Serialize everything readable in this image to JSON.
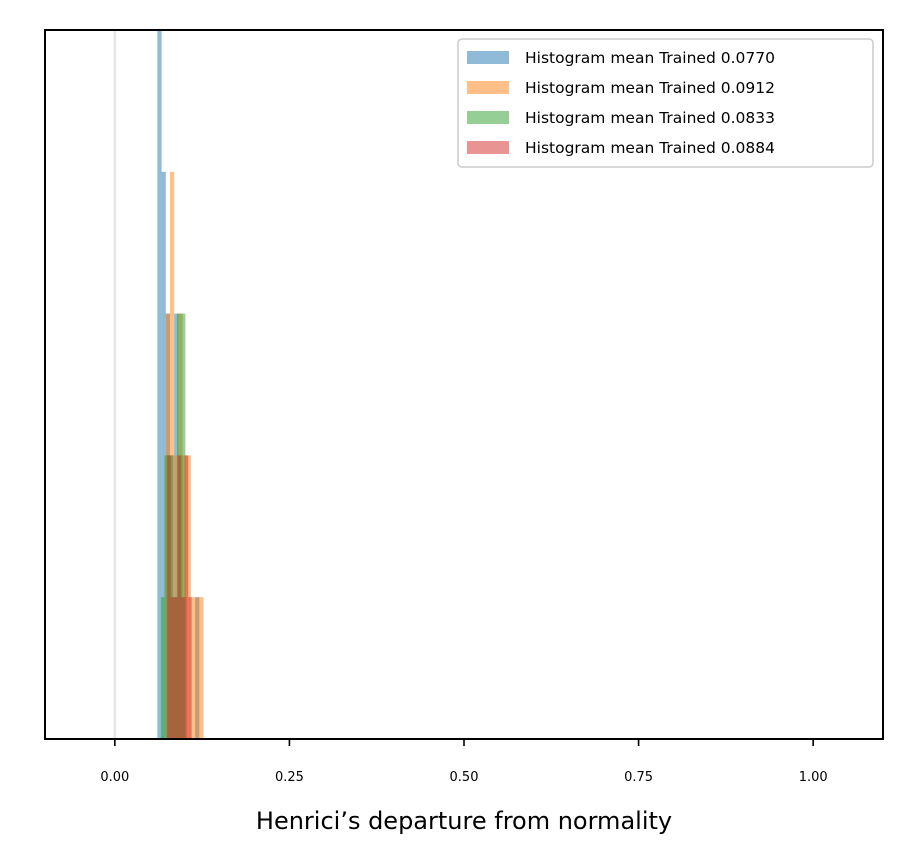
{
  "chart_data": {
    "type": "histogram",
    "title": "",
    "xlabel": "Henrici’s departure from normality",
    "ylabel": "",
    "xlim": [
      -0.1,
      1.1
    ],
    "ylim": [
      0,
      5
    ],
    "y_ticks_visible": false,
    "x_ticks": [
      {
        "value": 0.0,
        "label": "0.00"
      },
      {
        "value": 0.25,
        "label": "0.25"
      },
      {
        "value": 0.5,
        "label": "0.50"
      },
      {
        "value": 0.75,
        "label": "0.75"
      },
      {
        "value": 1.0,
        "label": "1.00"
      }
    ],
    "reference_line": {
      "x": 0.0,
      "color": "#e6e6e6"
    },
    "grid": false,
    "legend": {
      "placement": "top-right"
    },
    "series": [
      {
        "name": "Histogram mean Trained 0.0770",
        "color": "#1f77b4",
        "opacity": 0.5,
        "bins": [
          {
            "x0": 0.061,
            "x1": 0.067,
            "count": 5
          },
          {
            "x0": 0.067,
            "x1": 0.073,
            "count": 4
          },
          {
            "x0": 0.073,
            "x1": 0.079,
            "count": 3
          },
          {
            "x0": 0.079,
            "x1": 0.085,
            "count": 2
          },
          {
            "x0": 0.085,
            "x1": 0.091,
            "count": 3
          },
          {
            "x0": 0.091,
            "x1": 0.097,
            "count": 2
          },
          {
            "x0": 0.097,
            "x1": 0.103,
            "count": 1
          },
          {
            "x0": 0.103,
            "x1": 0.109,
            "count": 0
          },
          {
            "x0": 0.109,
            "x1": 0.115,
            "count": 0
          },
          {
            "x0": 0.115,
            "x1": 0.121,
            "count": 1
          }
        ]
      },
      {
        "name": "Histogram mean Trained 0.0912",
        "color": "#ff7f0e",
        "opacity": 0.5,
        "bins": [
          {
            "x0": 0.073,
            "x1": 0.079,
            "count": 3
          },
          {
            "x0": 0.079,
            "x1": 0.085,
            "count": 4
          },
          {
            "x0": 0.085,
            "x1": 0.091,
            "count": 2
          },
          {
            "x0": 0.091,
            "x1": 0.097,
            "count": 3
          },
          {
            "x0": 0.097,
            "x1": 0.103,
            "count": 2
          },
          {
            "x0": 0.103,
            "x1": 0.109,
            "count": 2
          },
          {
            "x0": 0.109,
            "x1": 0.115,
            "count": 1
          },
          {
            "x0": 0.115,
            "x1": 0.121,
            "count": 1
          },
          {
            "x0": 0.121,
            "x1": 0.127,
            "count": 1
          }
        ]
      },
      {
        "name": "Histogram mean Trained 0.0833",
        "color": "#2ca02c",
        "opacity": 0.5,
        "bins": [
          {
            "x0": 0.066,
            "x1": 0.071,
            "count": 1
          },
          {
            "x0": 0.071,
            "x1": 0.077,
            "count": 2
          },
          {
            "x0": 0.077,
            "x1": 0.083,
            "count": 2
          },
          {
            "x0": 0.083,
            "x1": 0.089,
            "count": 1
          },
          {
            "x0": 0.089,
            "x1": 0.095,
            "count": 3
          },
          {
            "x0": 0.095,
            "x1": 0.101,
            "count": 3
          }
        ]
      },
      {
        "name": "Histogram mean Trained 0.0884",
        "color": "#d62728",
        "opacity": 0.5,
        "bins": [
          {
            "x0": 0.075,
            "x1": 0.08,
            "count": 2
          },
          {
            "x0": 0.08,
            "x1": 0.085,
            "count": 1
          },
          {
            "x0": 0.085,
            "x1": 0.09,
            "count": 1
          },
          {
            "x0": 0.09,
            "x1": 0.095,
            "count": 2
          },
          {
            "x0": 0.095,
            "x1": 0.1,
            "count": 1
          },
          {
            "x0": 0.1,
            "x1": 0.105,
            "count": 2
          },
          {
            "x0": 0.105,
            "x1": 0.11,
            "count": 1
          }
        ]
      }
    ]
  }
}
